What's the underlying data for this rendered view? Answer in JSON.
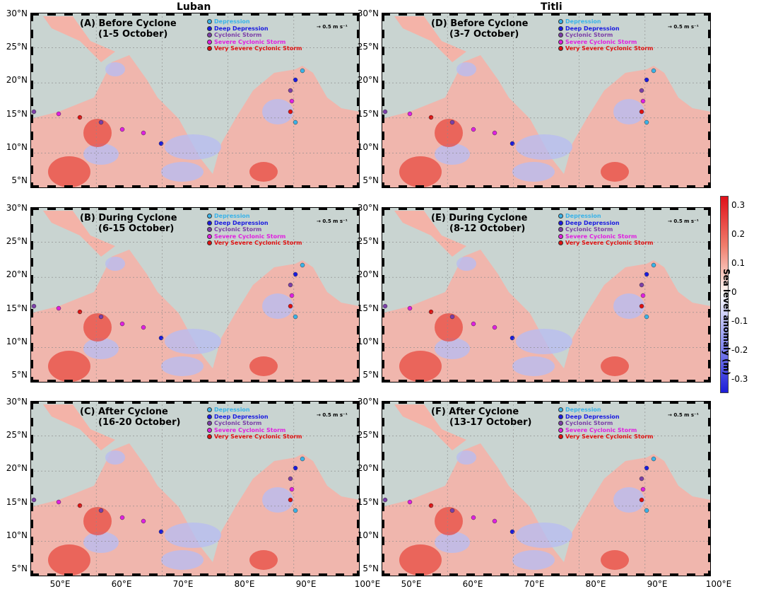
{
  "columns": {
    "left": "Luban",
    "right": "Titli"
  },
  "panels": [
    {
      "id": "A",
      "label": "(A)",
      "title": "Before Cyclone",
      "dates": "(1-5 October)"
    },
    {
      "id": "B",
      "label": "(B)",
      "title": "During Cyclone",
      "dates": "(6-15 October)"
    },
    {
      "id": "C",
      "label": "(C)",
      "title": "After Cyclone",
      "dates": "(16-20 October)"
    },
    {
      "id": "D",
      "label": "(D)",
      "title": "Before Cyclone",
      "dates": "(3-7 October)"
    },
    {
      "id": "E",
      "label": "(E)",
      "title": "During Cyclone",
      "dates": "(8-12 October)"
    },
    {
      "id": "F",
      "label": "(F)",
      "title": "After Cyclone",
      "dates": "(13-17 October)"
    }
  ],
  "legend": [
    {
      "label": "Depression",
      "color": "#3ab3e8"
    },
    {
      "label": "Deep Depression",
      "color": "#1a1ae0"
    },
    {
      "label": "Cyclonic Storm",
      "color": "#7b3fa8"
    },
    {
      "label": "Severe Cyclonic Storm",
      "color": "#e020e0"
    },
    {
      "label": "Very Severe Cyclonic Storm",
      "color": "#e01010"
    }
  ],
  "scale_arrow": "0.5 m s⁻¹",
  "lat_ticks": [
    "30°N",
    "25°N",
    "20°N",
    "15°N",
    "10°N",
    "5°N"
  ],
  "lon_ticks": [
    "50°E",
    "60°E",
    "70°E",
    "80°E",
    "90°E",
    "100°E"
  ],
  "colorbar": {
    "label": "Sea level anomaly (m)",
    "ticks": [
      "0.3",
      "0.2",
      "0.1",
      "0",
      "-0.1",
      "-0.2",
      "-0.3"
    ],
    "colors": {
      "high": "#e0101a",
      "mid": "#ffffff",
      "low": "#1c1cd8"
    }
  },
  "colors": {
    "land": "#c9d4d1",
    "ocean_warm": "#f4b3a8",
    "ocean_cold": "#b9bdf0"
  }
}
